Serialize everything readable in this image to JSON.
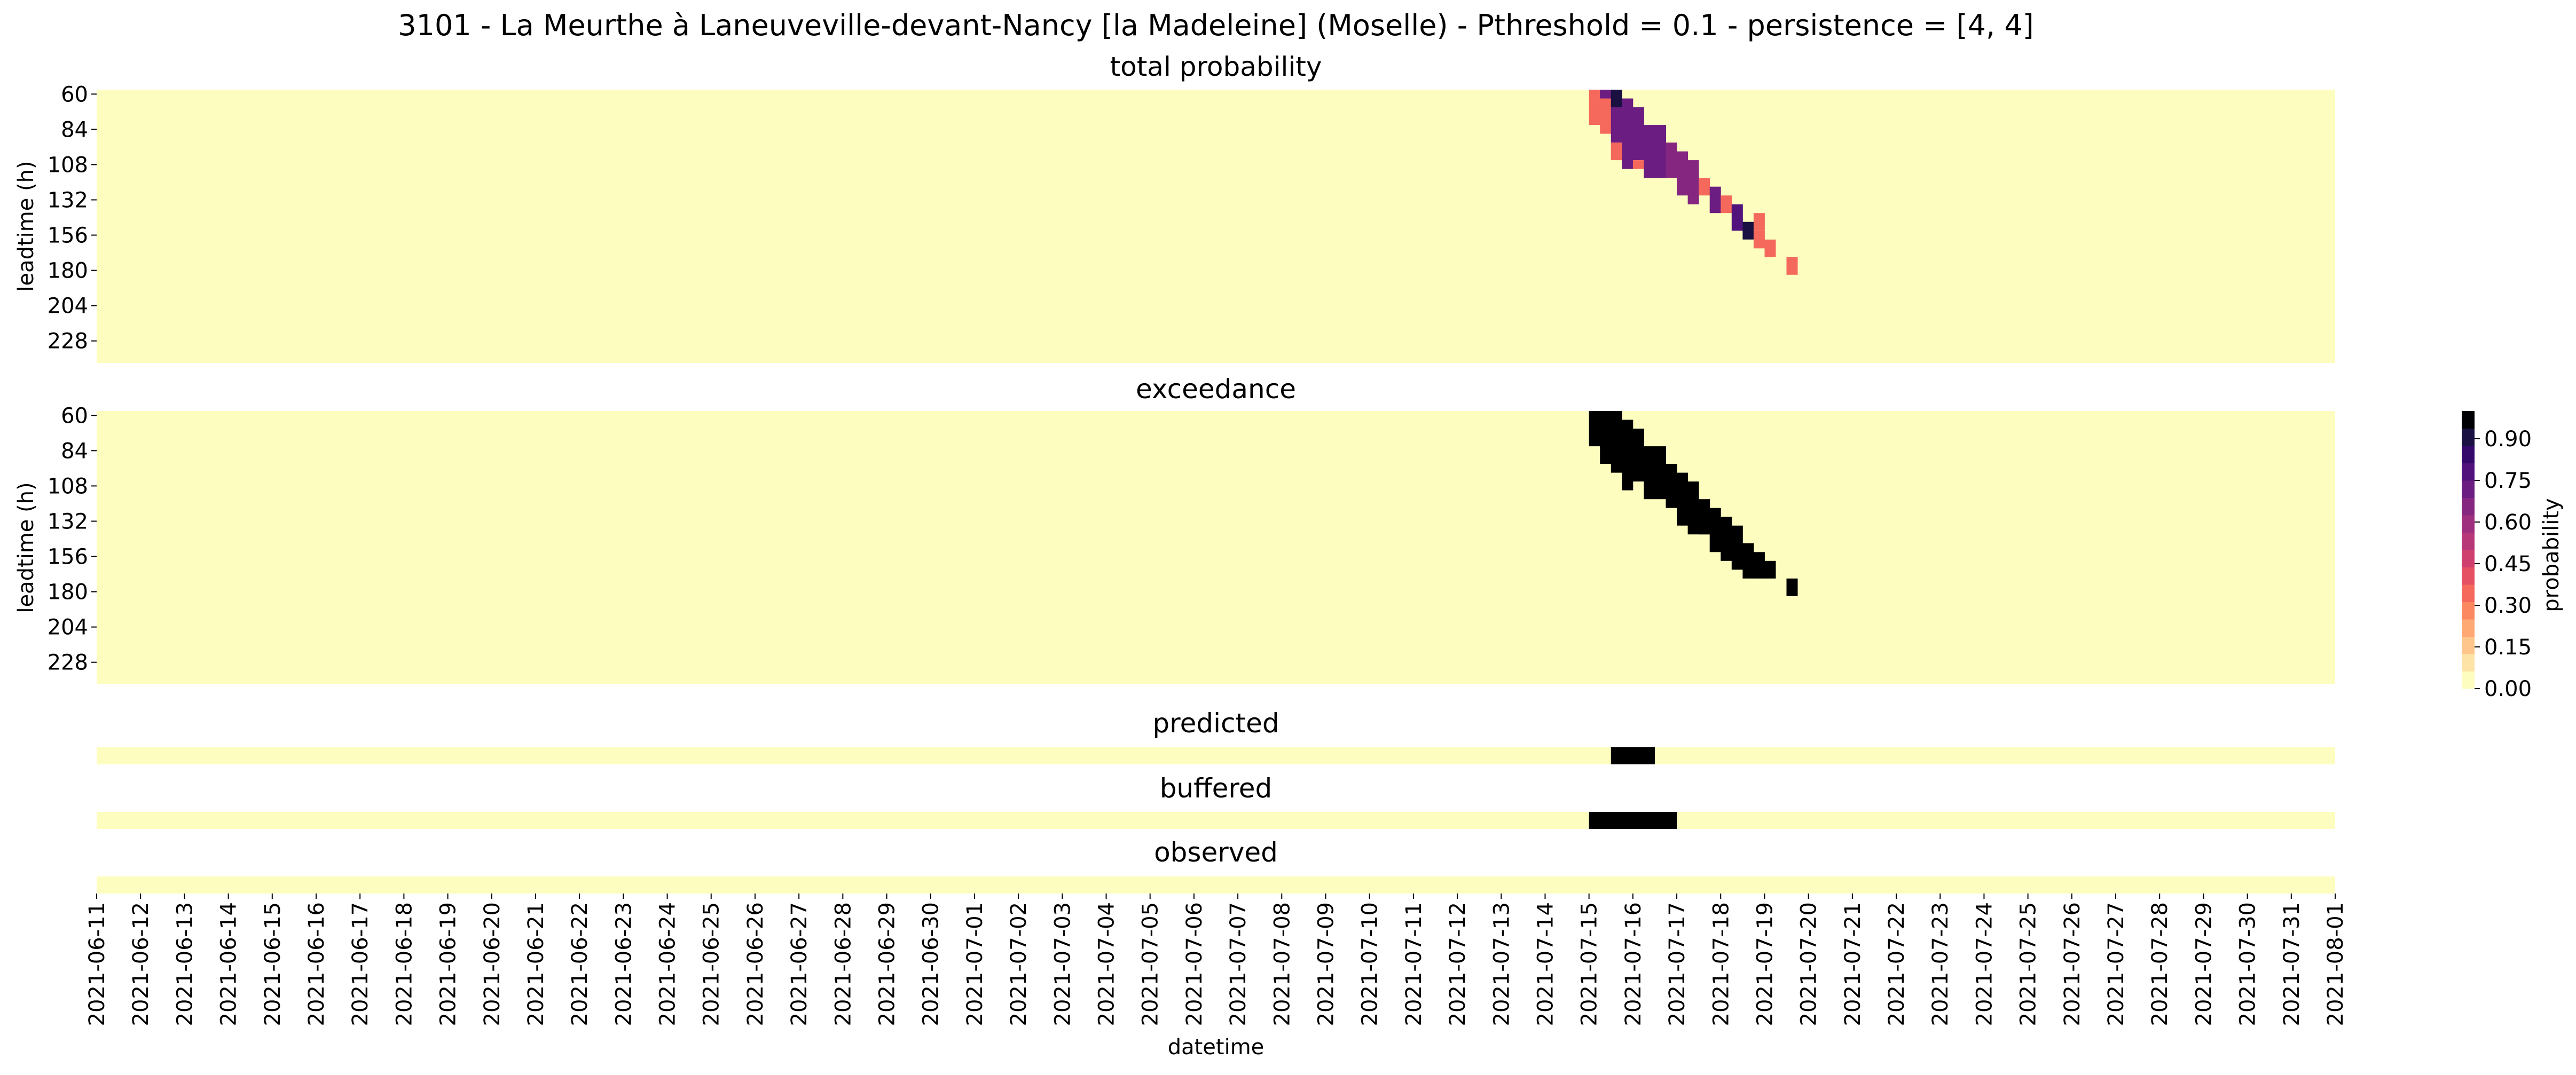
{
  "chart_data": {
    "type": "heatmap",
    "suptitle": "3101 - La Meurthe à Laneuveville-devant-Nancy [la Madeleine] (Moselle) - Pthreshold = 0.1 - persistence = [4, 4]",
    "xlabel": "datetime",
    "ylabel": "leadtime (h)",
    "x_ticks": [
      "2021-06-11",
      "2021-06-12",
      "2021-06-13",
      "2021-06-14",
      "2021-06-15",
      "2021-06-16",
      "2021-06-17",
      "2021-06-18",
      "2021-06-19",
      "2021-06-20",
      "2021-06-21",
      "2021-06-22",
      "2021-06-23",
      "2021-06-24",
      "2021-06-25",
      "2021-06-26",
      "2021-06-27",
      "2021-06-28",
      "2021-06-29",
      "2021-06-30",
      "2021-07-01",
      "2021-07-02",
      "2021-07-03",
      "2021-07-04",
      "2021-07-05",
      "2021-07-06",
      "2021-07-07",
      "2021-07-08",
      "2021-07-09",
      "2021-07-10",
      "2021-07-11",
      "2021-07-12",
      "2021-07-13",
      "2021-07-14",
      "2021-07-15",
      "2021-07-16",
      "2021-07-17",
      "2021-07-18",
      "2021-07-19",
      "2021-07-20",
      "2021-07-21",
      "2021-07-22",
      "2021-07-23",
      "2021-07-24",
      "2021-07-25",
      "2021-07-26",
      "2021-07-27",
      "2021-07-28",
      "2021-07-29",
      "2021-07-30",
      "2021-07-31",
      "2021-08-01"
    ],
    "leadtime_ticks": [
      "60",
      "84",
      "108",
      "132",
      "156",
      "180",
      "204",
      "228"
    ],
    "colorbar": {
      "label": "probability",
      "ticks": [
        "0.00",
        "0.15",
        "0.30",
        "0.45",
        "0.60",
        "0.75",
        "0.90"
      ],
      "levels": [
        "#fcfdbf",
        "#fde3a5",
        "#fec68a",
        "#fea873",
        "#fb8861",
        "#f4695c",
        "#e55063",
        "#cf406f",
        "#b73779",
        "#9e2f7f",
        "#852781",
        "#6b1d81",
        "#51127c",
        "#34096a",
        "#1a1042",
        "#000004"
      ]
    },
    "panels": [
      {
        "title": "total probability",
        "kind": "probability",
        "cells": [
          {
            "t": "2021-07-15",
            "lead": [
              60,
              66
            ],
            "p": 0.3
          },
          {
            "t": "2021-07-15",
            "lead": [
              72,
              78
            ],
            "p": 0.3
          },
          {
            "t": "2021-07-15 06",
            "lead": [
              60,
              60
            ],
            "p": 0.7
          },
          {
            "t": "2021-07-15 06",
            "lead": [
              66,
              84
            ],
            "p": 0.3
          },
          {
            "t": "2021-07-15 12",
            "lead": [
              60,
              66
            ],
            "p": 0.9
          },
          {
            "t": "2021-07-15 12",
            "lead": [
              72,
              90
            ],
            "p": 0.7
          },
          {
            "t": "2021-07-15 12",
            "lead": [
              96,
              102
            ],
            "p": 0.3
          },
          {
            "t": "2021-07-15 18",
            "lead": [
              66,
              108
            ],
            "p": 0.7
          },
          {
            "t": "2021-07-16",
            "lead": [
              72,
              102
            ],
            "p": 0.75
          },
          {
            "t": "2021-07-16",
            "lead": [
              108,
              108
            ],
            "p": 0.3
          },
          {
            "t": "2021-07-16 06",
            "lead": [
              84,
              114
            ],
            "p": 0.75
          },
          {
            "t": "2021-07-16 12",
            "lead": [
              84,
              114
            ],
            "p": 0.75
          },
          {
            "t": "2021-07-16 18",
            "lead": [
              96,
              114
            ],
            "p": 0.65
          },
          {
            "t": "2021-07-17",
            "lead": [
              102,
              126
            ],
            "p": 0.65
          },
          {
            "t": "2021-07-17 06",
            "lead": [
              108,
              132
            ],
            "p": 0.65
          },
          {
            "t": "2021-07-17 12",
            "lead": [
              120,
              126
            ],
            "p": 0.35
          },
          {
            "t": "2021-07-17 18",
            "lead": [
              126,
              138
            ],
            "p": 0.7
          },
          {
            "t": "2021-07-18",
            "lead": [
              132,
              138
            ],
            "p": 0.35
          },
          {
            "t": "2021-07-18 06",
            "lead": [
              138,
              150
            ],
            "p": 0.8
          },
          {
            "t": "2021-07-18 12",
            "lead": [
              150,
              156
            ],
            "p": 0.9
          },
          {
            "t": "2021-07-18 18",
            "lead": [
              144,
              150
            ],
            "p": 0.35
          },
          {
            "t": "2021-07-18 18",
            "lead": [
              156,
              162
            ],
            "p": 0.35
          },
          {
            "t": "2021-07-19",
            "lead": [
              162,
              168
            ],
            "p": 0.35
          },
          {
            "t": "2021-07-19 12",
            "lead": [
              174,
              180
            ],
            "p": 0.35
          }
        ]
      },
      {
        "title": "exceedance",
        "kind": "binary",
        "cells": [
          {
            "t": "2021-07-15",
            "lead": [
              60,
              78
            ],
            "p": 1
          },
          {
            "t": "2021-07-15 06",
            "lead": [
              60,
              90
            ],
            "p": 1
          },
          {
            "t": "2021-07-15 12",
            "lead": [
              60,
              96
            ],
            "p": 1
          },
          {
            "t": "2021-07-15 18",
            "lead": [
              66,
              108
            ],
            "p": 1
          },
          {
            "t": "2021-07-16",
            "lead": [
              72,
              102
            ],
            "p": 1
          },
          {
            "t": "2021-07-16 06",
            "lead": [
              84,
              114
            ],
            "p": 1
          },
          {
            "t": "2021-07-16 12",
            "lead": [
              84,
              114
            ],
            "p": 1
          },
          {
            "t": "2021-07-16 18",
            "lead": [
              96,
              120
            ],
            "p": 1
          },
          {
            "t": "2021-07-17",
            "lead": [
              102,
              132
            ],
            "p": 1
          },
          {
            "t": "2021-07-17 06",
            "lead": [
              108,
              138
            ],
            "p": 1
          },
          {
            "t": "2021-07-17 12",
            "lead": [
              120,
              138
            ],
            "p": 1
          },
          {
            "t": "2021-07-17 18",
            "lead": [
              126,
              150
            ],
            "p": 1
          },
          {
            "t": "2021-07-18",
            "lead": [
              132,
              156
            ],
            "p": 1
          },
          {
            "t": "2021-07-18 06",
            "lead": [
              138,
              162
            ],
            "p": 1
          },
          {
            "t": "2021-07-18 12",
            "lead": [
              150,
              168
            ],
            "p": 1
          },
          {
            "t": "2021-07-18 18",
            "lead": [
              156,
              168
            ],
            "p": 1
          },
          {
            "t": "2021-07-19",
            "lead": [
              162,
              168
            ],
            "p": 1
          },
          {
            "t": "2021-07-19 12",
            "lead": [
              174,
              180
            ],
            "p": 1
          }
        ]
      },
      {
        "title": "predicted",
        "kind": "strip",
        "ranges": [
          [
            "2021-07-15 12",
            "2021-07-16 06"
          ]
        ]
      },
      {
        "title": "buffered",
        "kind": "strip",
        "ranges": [
          [
            "2021-07-15",
            "2021-07-16 18"
          ]
        ]
      },
      {
        "title": "observed",
        "kind": "strip",
        "ranges": []
      }
    ]
  }
}
